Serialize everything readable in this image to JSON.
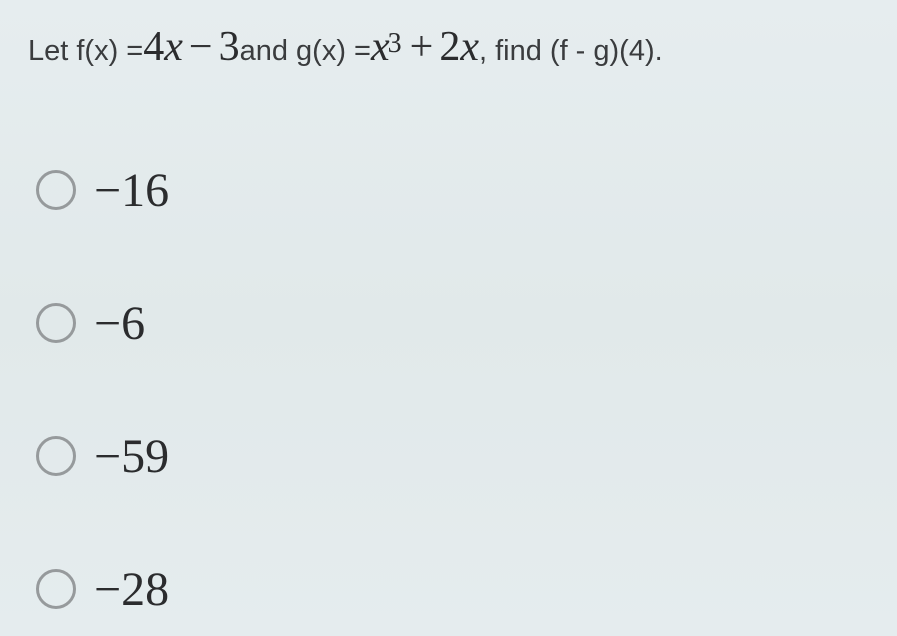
{
  "question": {
    "pre": "Let f(x) = ",
    "f_expr_a": "4",
    "f_expr_var1": "x",
    "f_op": "−",
    "f_expr_b": "3",
    "mid": " and g(x) = ",
    "g_var": "x",
    "g_exp": "3",
    "g_op": "+",
    "g_b": "2",
    "g_var2": "x",
    "post": ", find (f - g)(4)."
  },
  "options": [
    {
      "label": "−16"
    },
    {
      "label": "−6"
    },
    {
      "label": "−59"
    },
    {
      "label": "−28"
    }
  ],
  "style": {
    "background": "#e4ebed",
    "text_color": "#333436",
    "math_color": "#2b2c2e",
    "radio_border": "#969a9c",
    "question_fontsize_text": 29,
    "question_fontsize_math": 42,
    "option_fontsize": 48,
    "radio_size": 40
  }
}
